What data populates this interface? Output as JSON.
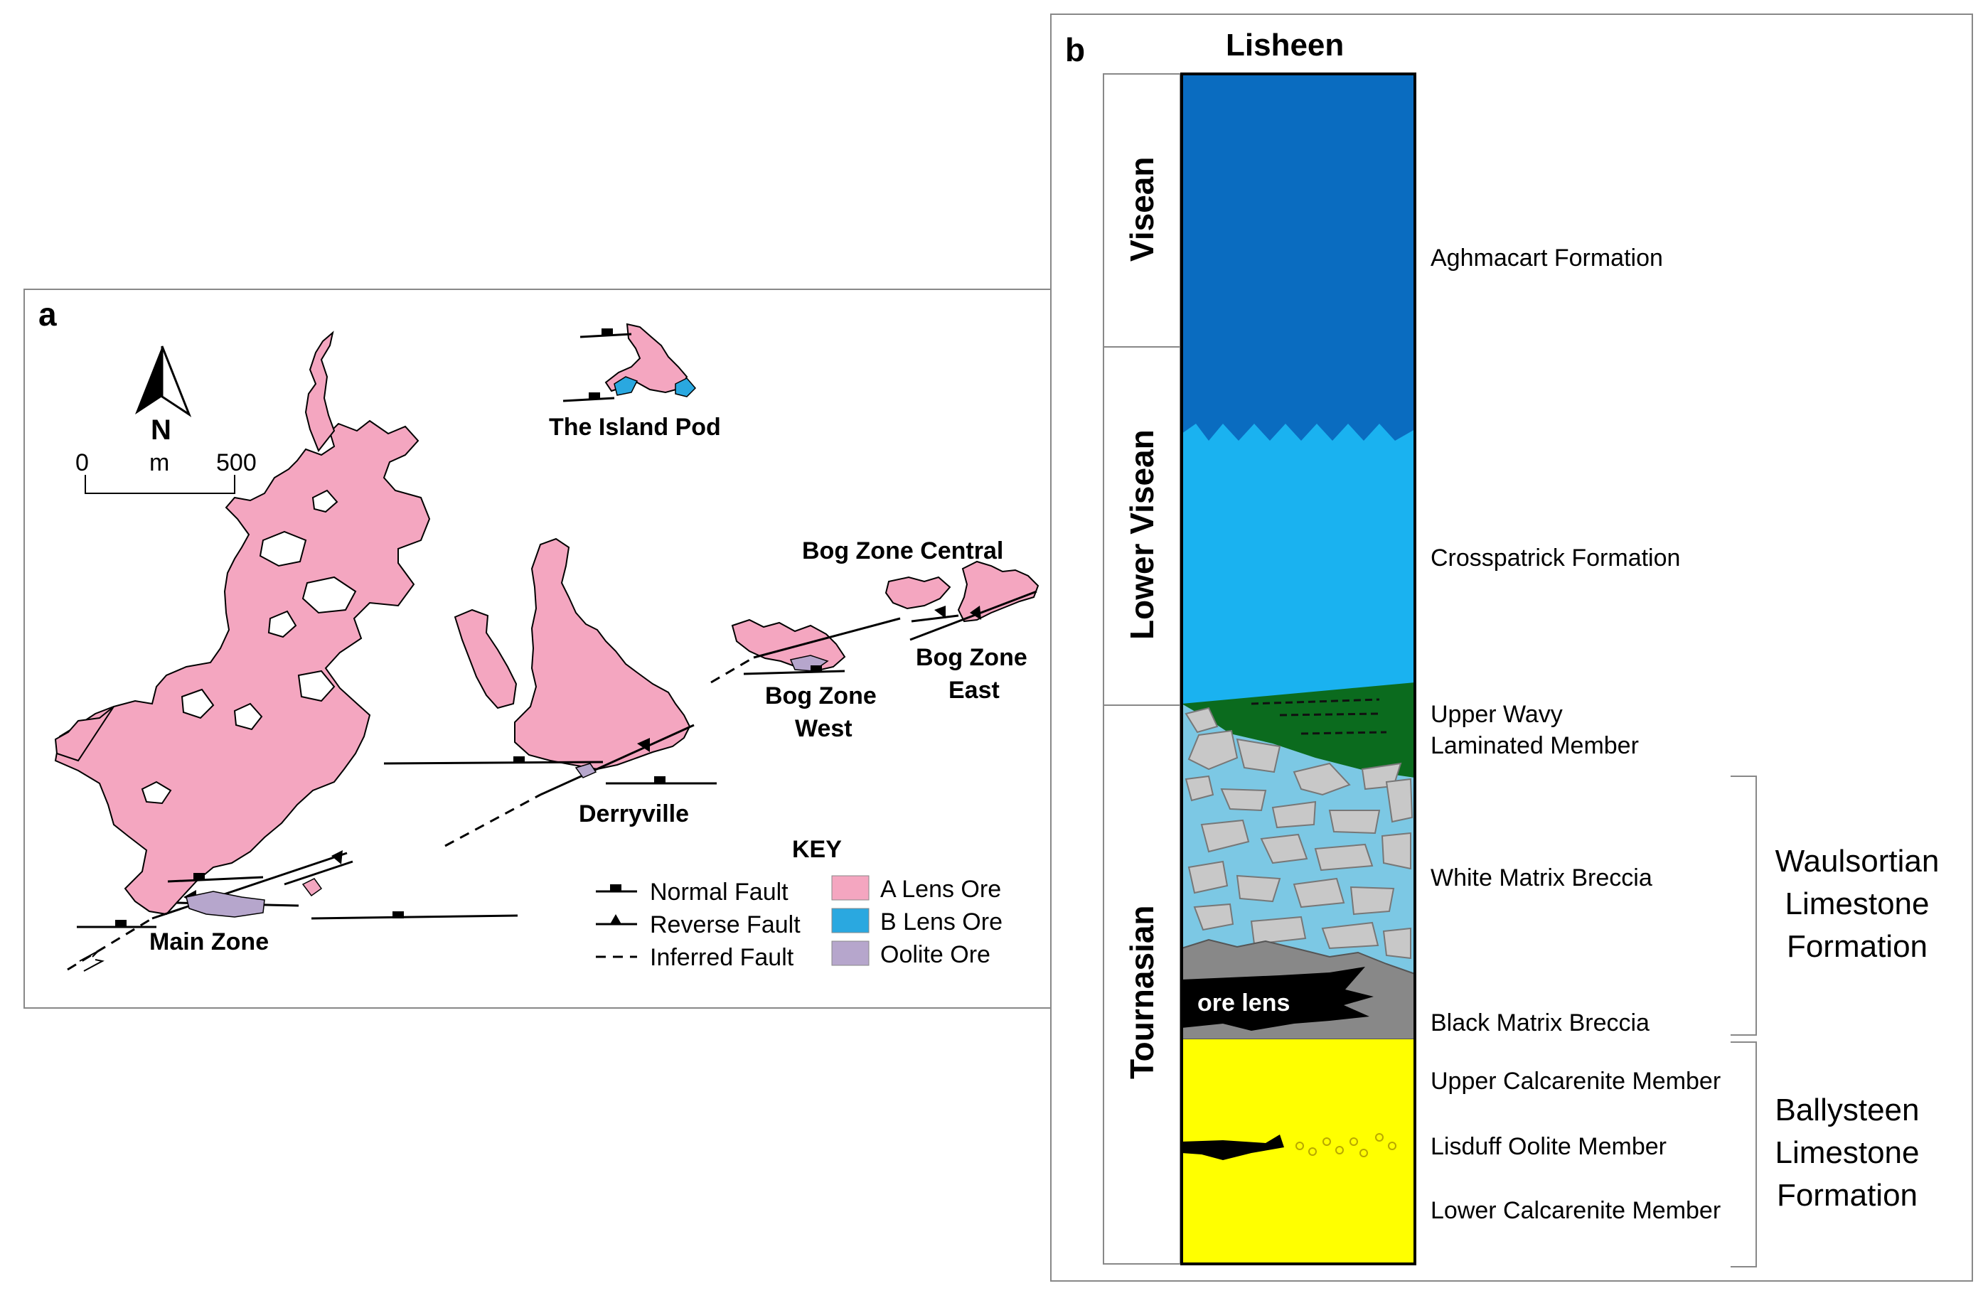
{
  "panel_a": {
    "letter": "a",
    "north": "N",
    "scale": {
      "start": "0",
      "unit": "m",
      "end": "500"
    },
    "zones": {
      "island_pod": "The Island Pod",
      "bog_central": "Bog Zone Central",
      "bog_east_1": "Bog Zone",
      "bog_east_2": "East",
      "bog_west_1": "Bog Zone",
      "bog_west_2": "West",
      "derryville": "Derryville",
      "main_zone": "Main Zone"
    },
    "key": {
      "title": "KEY",
      "normal_fault": "Normal Fault",
      "reverse_fault": "Reverse Fault",
      "inferred_fault": "Inferred Fault",
      "a_lens": "A Lens Ore",
      "b_lens": "B Lens Ore",
      "oolite": "Oolite Ore"
    },
    "colors": {
      "a_lens": "#f4a6c0",
      "b_lens": "#2aa8e0",
      "oolite": "#b6a6cc"
    }
  },
  "panel_b": {
    "letter": "b",
    "title": "Lisheen",
    "ages": {
      "visean": "Visean",
      "lower_visean": "Lower Visean",
      "tournasian": "Tournasian"
    },
    "units": {
      "aghmacart": "Aghmacart Formation",
      "crosspatrick": "Crosspatrick Formation",
      "upper_wavy_1": "Upper Wavy",
      "upper_wavy_2": "Laminated Member",
      "white_matrix": "White Matrix Breccia",
      "black_matrix": "Black Matrix Breccia",
      "upper_calc": "Upper Calcarenite Member",
      "lisduff": "Lisduff Oolite Member",
      "lower_calc": "Lower Calcarenite Member",
      "ore_lens": "ore lens"
    },
    "formations": {
      "waulsortian_1": "Waulsortian",
      "waulsortian_2": "Limestone",
      "waulsortian_3": "Formation",
      "ballysteen_1": "Ballysteen",
      "ballysteen_2": "Limestone",
      "ballysteen_3": "Formation"
    },
    "colors": {
      "aghmacart": "#0a6cc0",
      "crosspatrick": "#1ab2f0",
      "upper_wavy": "#0b6b1e",
      "white_matrix": "#7cc8e4",
      "clasts": "#c8c8c8",
      "black_matrix": "#000000",
      "ballysteen": "#ffff00"
    }
  }
}
